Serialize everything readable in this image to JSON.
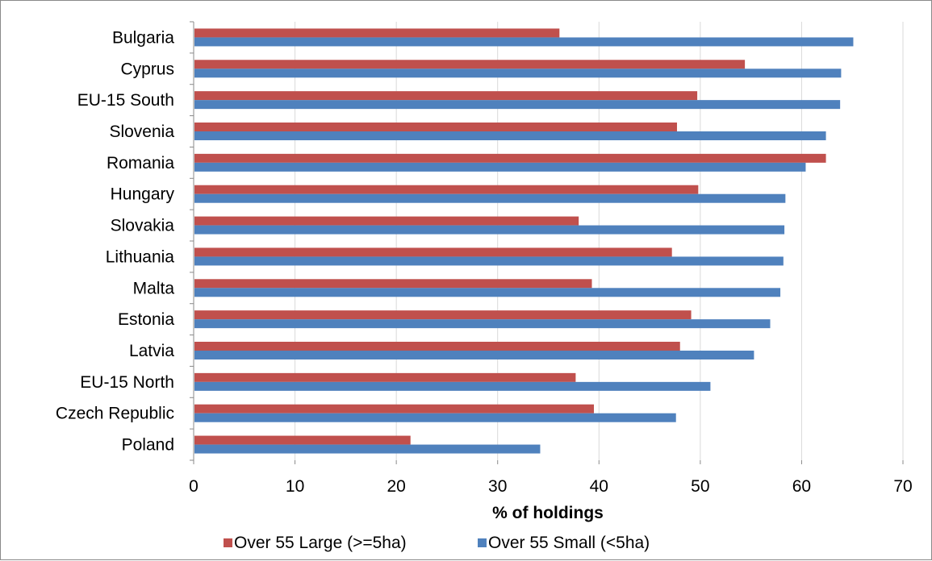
{
  "chart_data": {
    "type": "bar",
    "orientation": "horizontal",
    "categories": [
      "Bulgaria",
      "Cyprus",
      "EU-15 South",
      "Slovenia",
      "Romania",
      "Hungary",
      "Slovakia",
      "Lithuania",
      "Malta",
      "Estonia",
      "Latvia",
      "EU-15 North",
      "Czech Republic",
      "Poland"
    ],
    "series": [
      {
        "name": "Over 55 Large (>=5ha)",
        "color": "#C0504D",
        "values": [
          36.1,
          54.4,
          49.7,
          47.7,
          62.4,
          49.8,
          38.0,
          47.2,
          39.3,
          49.1,
          48.0,
          37.7,
          39.5,
          21.4
        ]
      },
      {
        "name": "Over 55 Small (<5ha)",
        "color": "#4F81BD",
        "values": [
          65.1,
          63.9,
          63.8,
          62.4,
          60.4,
          58.4,
          58.3,
          58.2,
          57.9,
          56.9,
          55.3,
          51.0,
          47.6,
          34.2
        ]
      }
    ],
    "xlabel": "% of holdings",
    "ylabel": "",
    "xlim": [
      0,
      70
    ],
    "xticks": [
      0,
      10,
      20,
      30,
      40,
      50,
      60,
      70
    ],
    "grid": true,
    "legend_position": "bottom"
  }
}
